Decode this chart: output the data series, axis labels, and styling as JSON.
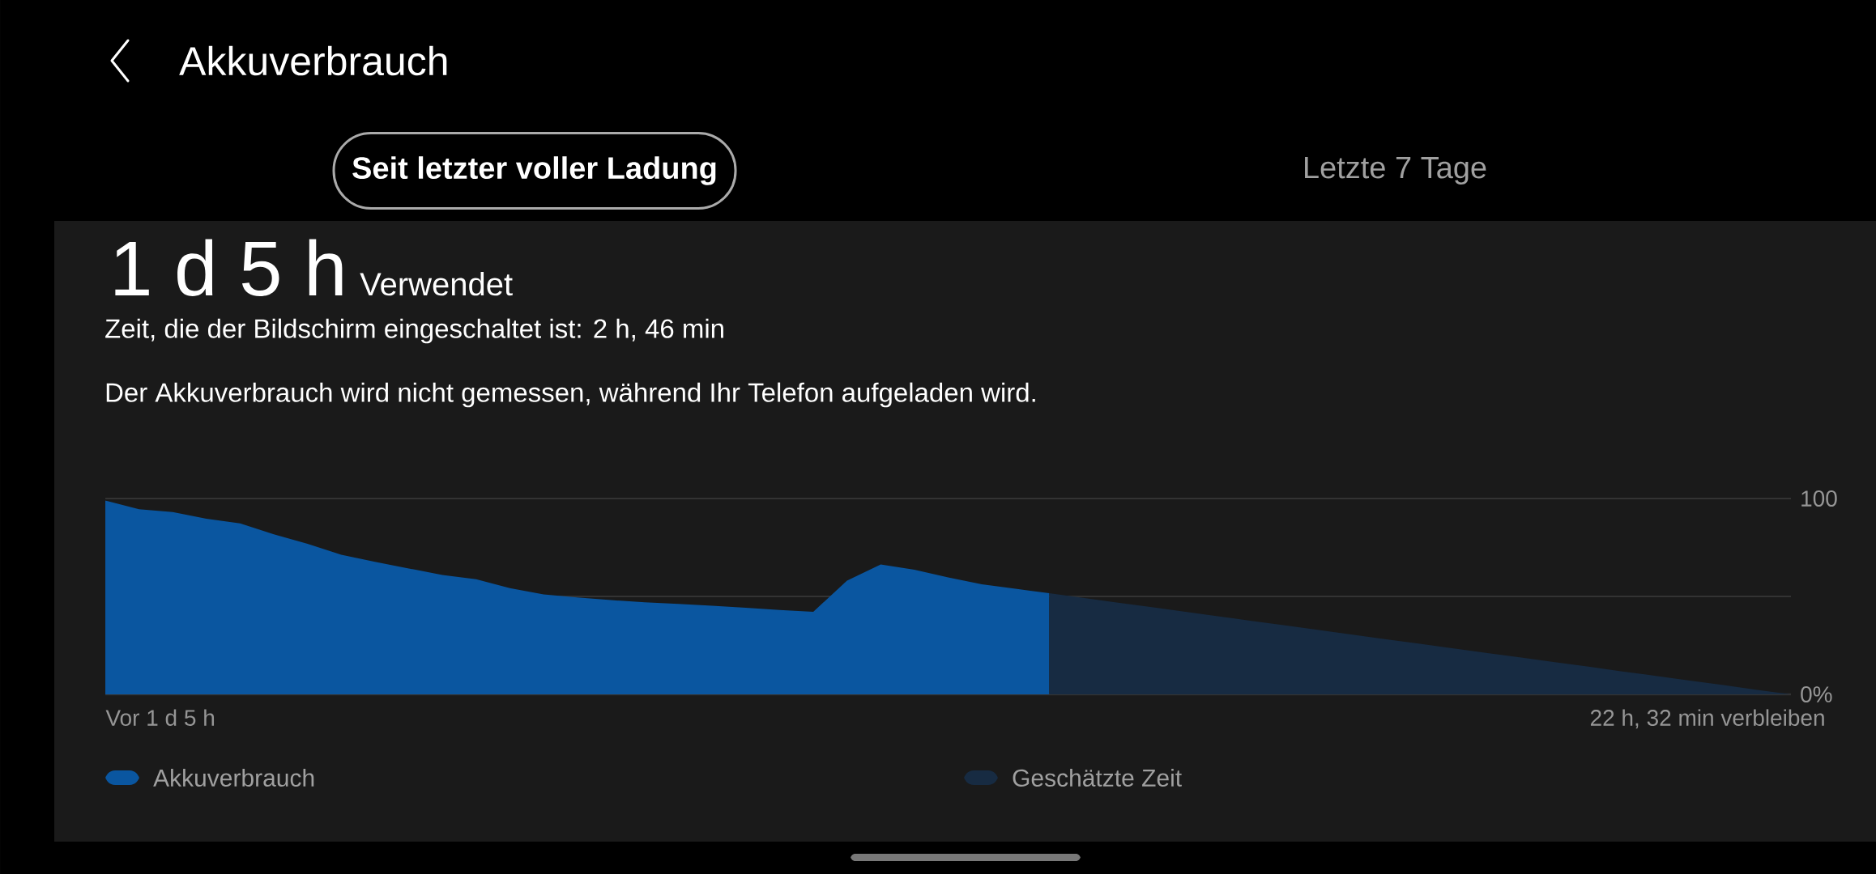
{
  "chart_data": {
    "type": "area",
    "title": "Akkuverbrauch",
    "annotations": [
      "Seit letzter voller Ladung",
      "Letzte 7 Tage",
      "1 d 5 h",
      "Verwendet",
      "Zeit, die der Bildschirm eingeschaltet ist: 2 h, 46 min",
      "Der Akkuverbrauch wird nicht gemessen, während Ihr Telefon aufgeladen wird.",
      "Vor 1 d 5 h",
      "22 h, 32 min verbleiben"
    ],
    "categories": [
      null,
      null,
      null,
      null,
      null,
      null,
      null,
      null,
      null,
      null,
      null,
      null,
      null,
      null,
      null,
      null,
      null,
      null,
      null,
      null,
      null,
      null,
      null,
      null,
      null,
      null,
      null,
      null,
      null,
      null,
      null,
      null,
      null,
      null,
      null,
      null,
      null,
      null,
      null,
      null,
      null,
      null,
      null,
      null,
      null,
      null,
      null,
      null,
      null,
      null,
      null
    ],
    "series": [
      {
        "name": "Akkuverbrauch",
        "color": "#0a56a0",
        "values": [
          99,
          94.5,
          93.1,
          89.7,
          87.3,
          81.7,
          76.9,
          71.3,
          67.7,
          64.3,
          61.0,
          58.8,
          54.2,
          51.0,
          49.5,
          48.1,
          47.0,
          46.2,
          45.2,
          44.2,
          43.1,
          42.1,
          58.1,
          66.3,
          63.6,
          59.7,
          56.2,
          53.9,
          51.6,
          null,
          null,
          null,
          null,
          null,
          null,
          null,
          null,
          null,
          null,
          null,
          null,
          null,
          null,
          null,
          null,
          null,
          null,
          null,
          null,
          null,
          null
        ]
      },
      {
        "name": "Geschätzte Zeit",
        "color": "#172b42",
        "values": [
          null,
          null,
          null,
          null,
          null,
          null,
          null,
          null,
          null,
          null,
          null,
          null,
          null,
          null,
          null,
          null,
          null,
          null,
          null,
          null,
          null,
          null,
          null,
          null,
          null,
          null,
          null,
          null,
          51.6,
          49.3,
          46.9,
          44.6,
          42.2,
          39.9,
          37.5,
          35.2,
          32.8,
          30.5,
          28.1,
          25.8,
          23.5,
          21.1,
          18.8,
          16.4,
          14.1,
          11.7,
          9.4,
          7.0,
          4.7,
          2.3,
          0
        ]
      }
    ],
    "ylim": [
      0,
      100
    ],
    "yticks": [
      {
        "value": 0,
        "label": "0%"
      },
      {
        "value": 50,
        "label": null
      },
      100
    ],
    "grid": "y",
    "legend": "bottom"
  }
}
